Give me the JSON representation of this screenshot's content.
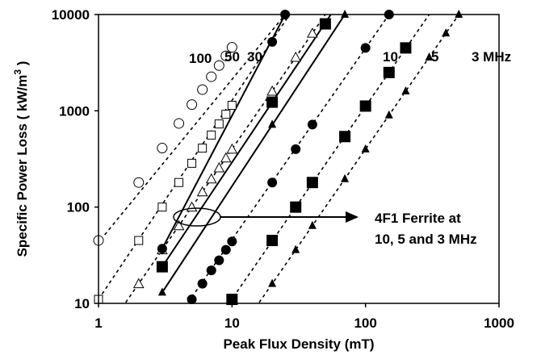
{
  "chart_data": {
    "type": "scatter",
    "title": "",
    "xlabel": "Peak Flux Density (mT)",
    "ylabel": "Specific Power Loss  ( kW/m",
    "ylabel_sup": "3",
    "ylabel_close": " )",
    "xscale": "log",
    "yscale": "log",
    "xlim": [
      1,
      1000
    ],
    "ylim": [
      10,
      10000
    ],
    "x_ticks": [
      1,
      10,
      100,
      1000
    ],
    "x_tick_labels": [
      "1",
      "10",
      "100",
      "1000"
    ],
    "y_ticks": [
      10,
      100,
      1000,
      10000
    ],
    "y_tick_labels": [
      "10",
      "100",
      "1000",
      "10000"
    ],
    "grid": false,
    "series": [
      {
        "name": "100",
        "marker": "open-circle",
        "line": "dotted",
        "x": [
          1,
          2,
          3,
          4,
          5,
          6,
          7,
          8,
          9,
          10
        ],
        "y": [
          45,
          180,
          410,
          740,
          1160,
          1660,
          2260,
          2950,
          3720,
          4570
        ],
        "fit": [
          [
            0.9,
            36
          ],
          [
            25,
            10000
          ]
        ]
      },
      {
        "name": "50",
        "marker": "open-square",
        "line": "dotted",
        "x": [
          1,
          2,
          3,
          4,
          5,
          6,
          7,
          8,
          9,
          10
        ],
        "y": [
          11,
          45,
          100,
          180,
          285,
          410,
          560,
          730,
          920,
          1140
        ],
        "fit": [
          [
            1.0,
            11
          ],
          [
            27,
            10000
          ]
        ]
      },
      {
        "name": "30",
        "marker": "open-triangle",
        "line": "dotted",
        "x": [
          2,
          3,
          4,
          5,
          6,
          7,
          8,
          9,
          10,
          20,
          30,
          40
        ],
        "y": [
          16,
          36,
          64,
          100,
          144,
          196,
          256,
          324,
          400,
          1600,
          3600,
          6400
        ],
        "fit": [
          [
            1.5,
            9
          ],
          [
            50,
            10000
          ]
        ]
      },
      {
        "name": "10",
        "marker": "filled-circle",
        "line": "solid",
        "x": [
          3,
          20,
          25
        ],
        "y": [
          37,
          5200,
          10000
        ],
        "fit": [
          [
            3,
            37
          ],
          [
            25,
            10000
          ]
        ]
      },
      {
        "name": "5",
        "marker": "filled-square",
        "line": "solid",
        "x": [
          3,
          20,
          50
        ],
        "y": [
          24,
          1230,
          8000
        ],
        "fit": [
          [
            3,
            24
          ],
          [
            55,
            10000
          ]
        ]
      },
      {
        "name": "3",
        "marker": "filled-triangle",
        "line": "solid",
        "x": [
          3,
          20,
          70
        ],
        "y": [
          13,
          720,
          10000
        ],
        "fit": [
          [
            3,
            13
          ],
          [
            70,
            10000
          ]
        ]
      },
      {
        "name": "10",
        "marker": "filled-circle",
        "line": "dotted",
        "x": [
          5,
          6,
          7,
          8,
          9,
          10,
          20,
          30,
          40,
          100,
          150
        ],
        "y": [
          11,
          16,
          22,
          28,
          36,
          44,
          180,
          400,
          720,
          4500,
          10000
        ],
        "fit": [
          [
            4.4,
            9
          ],
          [
            150,
            10000
          ]
        ]
      },
      {
        "name": "5",
        "marker": "filled-square",
        "line": "dotted",
        "x": [
          10,
          20,
          30,
          40,
          70,
          100,
          150,
          200
        ],
        "y": [
          11,
          45,
          100,
          180,
          540,
          1120,
          2500,
          4500
        ],
        "fit": [
          [
            9,
            9
          ],
          [
            300,
            10000
          ]
        ]
      },
      {
        "name": "3",
        "marker": "filled-triangle",
        "line": "dotted",
        "x": [
          20,
          30,
          40,
          70,
          100,
          150,
          200,
          300,
          400,
          500
        ],
        "y": [
          16,
          36,
          64,
          196,
          400,
          900,
          1600,
          3600,
          6400,
          10000
        ],
        "fit": [
          [
            15,
            9
          ],
          [
            500,
            10000
          ]
        ]
      }
    ],
    "annotations": {
      "freq_labels": [
        "100",
        "50",
        "30",
        "10",
        "5",
        "3 MHz"
      ],
      "arrow_text_line1": "4F1 Ferrite at",
      "arrow_text_line2": "10, 5 and 3 MHz"
    }
  }
}
